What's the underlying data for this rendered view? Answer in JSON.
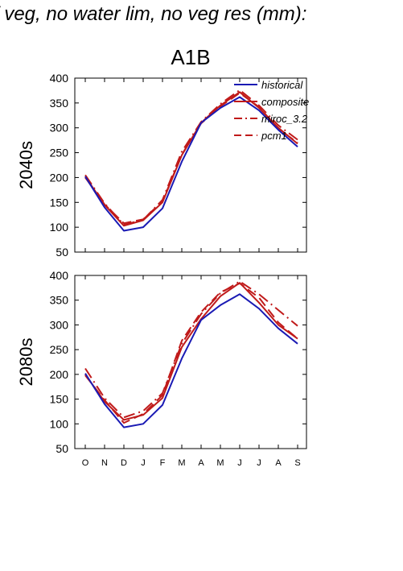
{
  "title": "f veg, no water lim, no veg res (mm):",
  "scenario": "A1B",
  "colors": {
    "historical": "#1a1ab4",
    "future": "#c01a1a"
  },
  "chart_data": [
    {
      "type": "line",
      "row_label": "2040s",
      "categories": [
        "O",
        "N",
        "D",
        "J",
        "F",
        "M",
        "A",
        "M",
        "J",
        "J",
        "A",
        "S"
      ],
      "ylim": [
        50,
        400
      ],
      "yticks": [
        50,
        100,
        150,
        200,
        250,
        300,
        350,
        400
      ],
      "legend": {
        "placement": "top-right"
      },
      "series": [
        {
          "name": "historical",
          "style": "solid",
          "color": "#1a1ab4",
          "values": [
            202,
            140,
            93,
            100,
            138,
            232,
            310,
            340,
            362,
            335,
            296,
            262
          ]
        },
        {
          "name": "composite",
          "style": "solid",
          "color": "#c01a1a",
          "values": [
            202,
            145,
            103,
            114,
            150,
            245,
            310,
            345,
            372,
            340,
            300,
            268
          ]
        },
        {
          "name": "miroc_3.2",
          "style": "dashdot",
          "color": "#c01a1a",
          "values": [
            205,
            148,
            105,
            115,
            155,
            252,
            312,
            348,
            376,
            345,
            305,
            276
          ]
        },
        {
          "name": "pcm1",
          "style": "dash",
          "color": "#c01a1a",
          "values": [
            200,
            146,
            108,
            116,
            152,
            246,
            309,
            343,
            370,
            342,
            298,
            270
          ]
        }
      ]
    },
    {
      "type": "line",
      "row_label": "2080s",
      "categories": [
        "O",
        "N",
        "D",
        "J",
        "F",
        "M",
        "A",
        "M",
        "J",
        "J",
        "A",
        "S"
      ],
      "ylim": [
        50,
        400
      ],
      "yticks": [
        50,
        100,
        150,
        200,
        250,
        300,
        350,
        400
      ],
      "series": [
        {
          "name": "historical",
          "style": "solid",
          "color": "#1a1ab4",
          "values": [
            202,
            140,
            93,
            100,
            138,
            232,
            310,
            340,
            362,
            333,
            293,
            262
          ]
        },
        {
          "name": "composite",
          "style": "solid",
          "color": "#c01a1a",
          "values": [
            200,
            145,
            108,
            118,
            152,
            255,
            312,
            358,
            385,
            345,
            300,
            272
          ]
        },
        {
          "name": "miroc_3.2",
          "style": "dashdot",
          "color": "#c01a1a",
          "values": [
            212,
            152,
            113,
            126,
            162,
            262,
            322,
            364,
            388,
            362,
            330,
            298
          ]
        },
        {
          "name": "pcm1",
          "style": "dash",
          "color": "#c01a1a",
          "values": [
            198,
            148,
            102,
            120,
            158,
            268,
            326,
            366,
            384,
            355,
            305,
            272
          ]
        }
      ]
    }
  ]
}
